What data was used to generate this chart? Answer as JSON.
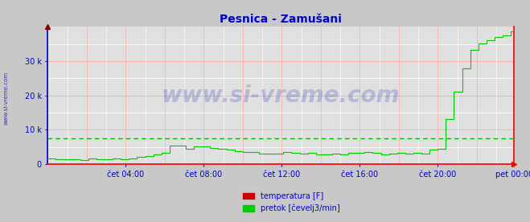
{
  "title": "Pesnica - Zamušani",
  "title_color": "#0000cc",
  "title_fontsize": 10,
  "bg_color": "#c8c8c8",
  "plot_bg_color": "#e0e0e0",
  "grid_color_major": "#ffaaaa",
  "grid_color_white": "#ffffff",
  "watermark_text": "www.si-vreme.com",
  "watermark_color": "#0000aa",
  "watermark_alpha": 0.18,
  "tick_color": "#0000cc",
  "axis_color_left": "#0000cc",
  "axis_color_bottom": "#ff0000",
  "axis_color_right": "#ff0000",
  "ylim": [
    0,
    40000
  ],
  "yticks": [
    0,
    10000,
    20000,
    30000
  ],
  "ytick_labels": [
    "0",
    "10 k",
    "20 k",
    "30 k"
  ],
  "xtick_labels": [
    "čet 04:00",
    "čet 08:00",
    "čet 12:00",
    "čet 16:00",
    "čet 20:00",
    "pet 00:00"
  ],
  "dashed_line_value": 7500,
  "dashed_line_color": "#00bb00",
  "temp_color": "#cc0000",
  "flow_color": "#00cc00",
  "legend_temp_label": "temperatura [F]",
  "legend_flow_label": "pretok [čevelj3/min]",
  "legend_color": "#0000cc",
  "left_label_text": "www.si-vreme.com",
  "left_label_color": "#0000aa",
  "n_points": 288,
  "xtick_positions": [
    48,
    96,
    144,
    192,
    240,
    287
  ]
}
